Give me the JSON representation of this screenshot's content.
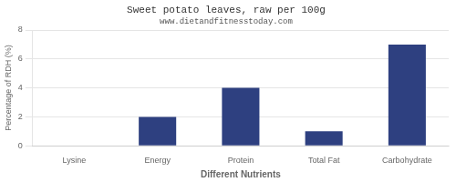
{
  "chart_data": {
    "type": "bar",
    "title": "Sweet potato leaves, raw per 100g",
    "subtitle": "www.dietandfitnesstoday.com",
    "xlabel": "Different Nutrients",
    "ylabel": "Percentage of RDH (%)",
    "categories": [
      "Lysine",
      "Energy",
      "Protein",
      "Total Fat",
      "Carbohydrate"
    ],
    "values": [
      0,
      2,
      4,
      1,
      7
    ],
    "color": "#2e4080",
    "ylim": [
      0,
      8
    ],
    "yticks": [
      0,
      2,
      4,
      6,
      8
    ],
    "grid": true
  }
}
